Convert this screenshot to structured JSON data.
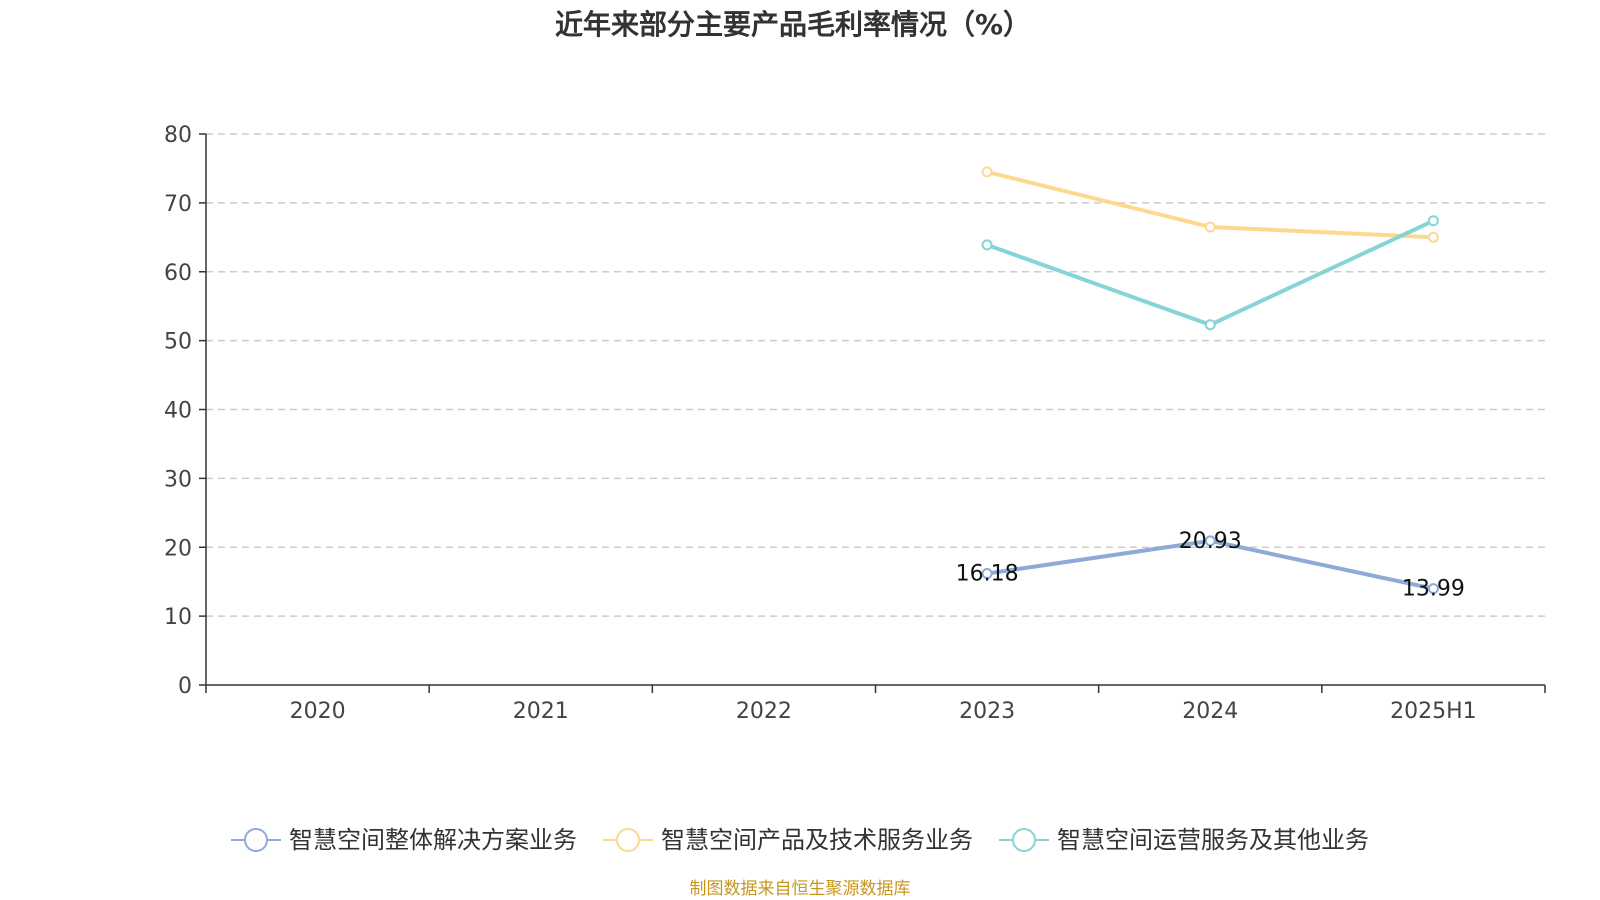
{
  "source_text": "制图数据来自恒生聚源数据库",
  "chart_data": {
    "type": "line",
    "title": "近年来部分主要产品毛利率情况（%）",
    "xlabel": "",
    "ylabel": "",
    "categories": [
      "2020",
      "2021",
      "2022",
      "2023",
      "2024",
      "2025H1"
    ],
    "ylim": [
      0,
      80
    ],
    "yticks": [
      0,
      10,
      20,
      30,
      40,
      50,
      60,
      70,
      80
    ],
    "grid": true,
    "legend_position": "bottom",
    "series": [
      {
        "name": "智慧空间整体解决方案业务",
        "color": "#8eaad6",
        "values": [
          null,
          null,
          null,
          16.18,
          20.93,
          13.99
        ],
        "labels": [
          null,
          null,
          null,
          "16.18",
          "20.93",
          "13.99"
        ]
      },
      {
        "name": "智慧空间产品及技术服务业务",
        "color": "#fcd98f",
        "values": [
          null,
          null,
          null,
          74.5,
          66.5,
          65.0
        ],
        "labels": [
          null,
          null,
          null,
          null,
          null,
          null
        ]
      },
      {
        "name": "智慧空间运营服务及其他业务",
        "color": "#86d4d6",
        "values": [
          null,
          null,
          null,
          63.9,
          52.3,
          67.4
        ],
        "labels": [
          null,
          null,
          null,
          null,
          null,
          null
        ]
      }
    ]
  }
}
